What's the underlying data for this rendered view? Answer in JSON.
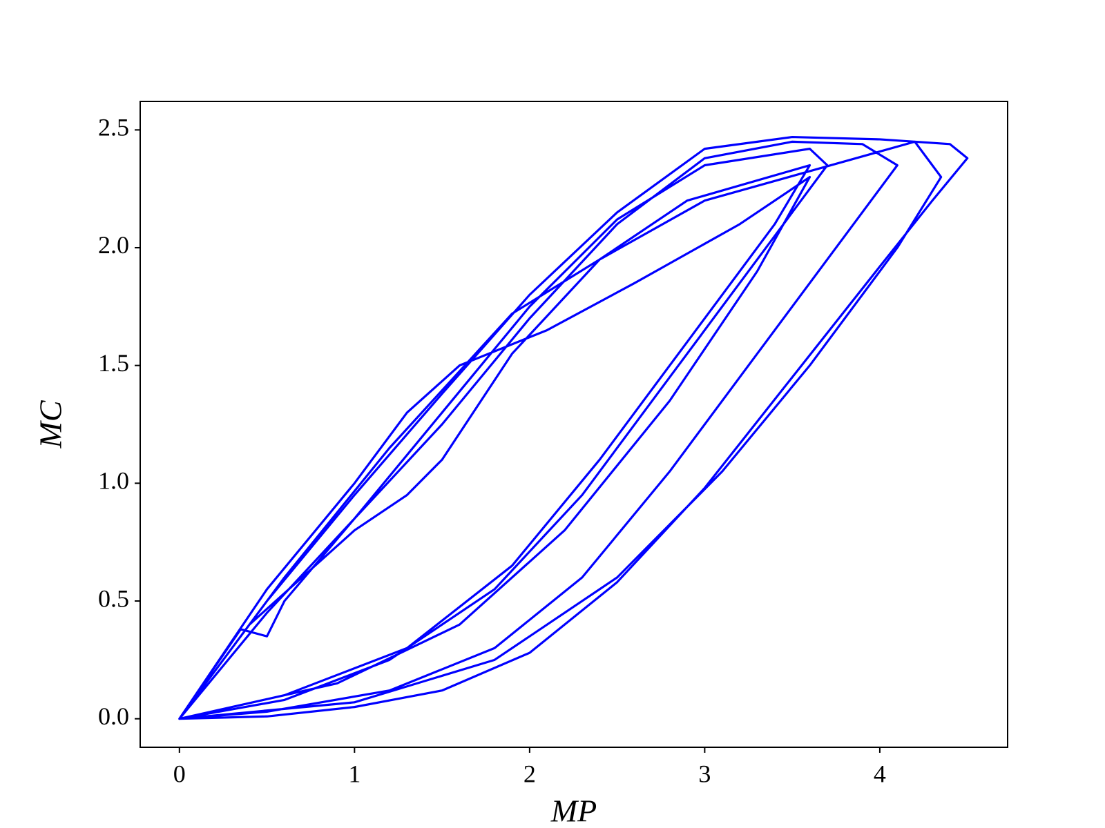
{
  "chart_data": {
    "type": "line",
    "x_label": "MP",
    "y_label": "MC",
    "x": [
      0,
      0.5,
      1,
      1.5,
      2,
      2.5,
      3,
      3.5,
      4,
      4.4,
      4.5,
      4.3,
      4,
      3.5,
      3,
      2.5,
      2,
      1.5,
      1,
      0.5,
      0,
      0.5,
      1,
      1.5,
      2,
      2.5,
      3,
      3.5,
      3.9,
      4.1,
      3.8,
      3.3,
      2.8,
      2.3,
      1.8,
      1.2,
      0.5,
      0,
      0.35,
      0.5,
      0.6,
      1,
      1.5,
      2,
      2.5,
      3,
      3.6,
      3.7,
      3.3,
      2.8,
      2.3,
      1.8,
      1.2,
      0.6,
      0,
      0.4,
      1,
      1.3,
      1.5,
      1.9,
      2.4,
      2.9,
      3.6,
      3.4,
      2.9,
      2.4,
      1.9,
      1.3,
      0.6,
      0,
      0.5,
      1,
      1.3,
      1.6,
      2.1,
      2.6,
      3.2,
      3.6,
      3.3,
      2.8,
      2.2,
      1.6,
      0.9,
      0,
      0.6,
      1.2,
      1.9,
      2.4,
      3,
      4.2,
      4.35,
      4.1,
      3.6,
      3.1,
      2.5,
      1.8,
      1,
      0
    ],
    "series": [
      {
        "color": "#0000ff",
        "values": [
          0,
          0.5,
          0.95,
          1.38,
          1.8,
          2.15,
          2.42,
          2.47,
          2.46,
          2.44,
          2.38,
          2.2,
          1.92,
          1.45,
          0.98,
          0.58,
          0.28,
          0.12,
          0.05,
          0.01,
          0,
          0.45,
          0.85,
          1.25,
          1.7,
          2.1,
          2.38,
          2.45,
          2.44,
          2.35,
          2.05,
          1.55,
          1.05,
          0.6,
          0.3,
          0.12,
          0.03,
          0,
          0.38,
          0.35,
          0.5,
          0.85,
          1.3,
          1.75,
          2.12,
          2.35,
          2.42,
          2.35,
          1.95,
          1.45,
          0.95,
          0.55,
          0.25,
          0.08,
          0,
          0.4,
          0.8,
          0.95,
          1.1,
          1.55,
          1.95,
          2.2,
          2.35,
          2.1,
          1.6,
          1.1,
          0.65,
          0.3,
          0.1,
          0,
          0.55,
          1,
          1.3,
          1.5,
          1.65,
          1.85,
          2.1,
          2.3,
          1.9,
          1.35,
          0.8,
          0.4,
          0.15,
          0,
          0.6,
          1.15,
          1.72,
          1.95,
          2.2,
          2.45,
          2.3,
          2,
          1.5,
          1.05,
          0.6,
          0.25,
          0.07,
          0
        ]
      }
    ],
    "xlim": [
      -0.224,
      4.73
    ],
    "ylim": [
      -0.121,
      2.621
    ],
    "xticks": [
      0,
      1,
      2,
      3,
      4
    ],
    "yticks": [
      {
        "value": 0,
        "label": "0.0"
      },
      0.5,
      {
        "value": 1,
        "label": "1.0"
      },
      1.5,
      {
        "value": 2,
        "label": "2.0"
      },
      2.5
    ],
    "grid": false
  }
}
